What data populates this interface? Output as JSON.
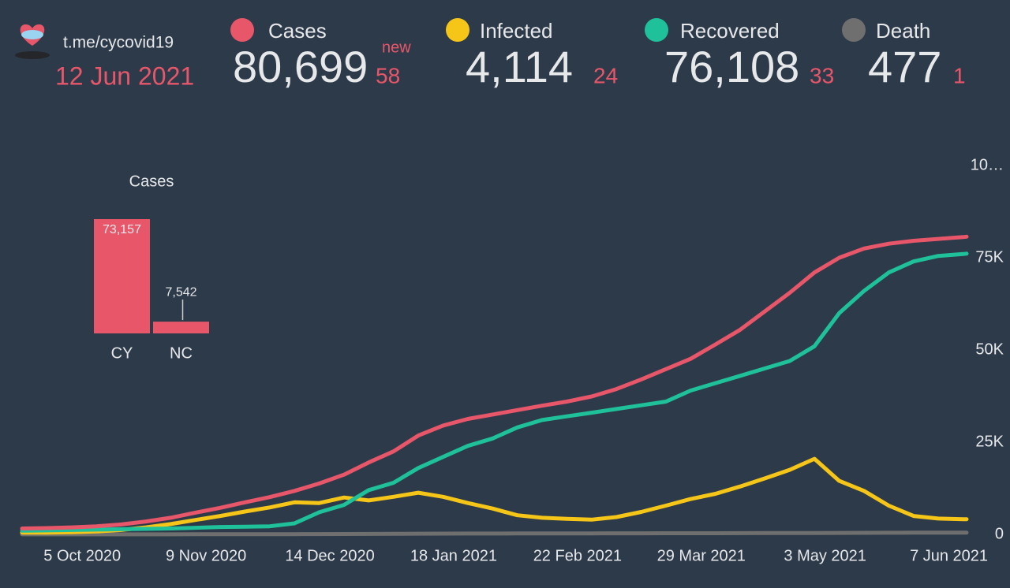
{
  "header": {
    "link": "t.me/cycovid19",
    "date": "12 Jun 2021",
    "new_label": "new",
    "stats": [
      {
        "name": "Cases",
        "color": "#e8566a",
        "value": "80,699",
        "new": "58"
      },
      {
        "name": "Infected",
        "color": "#f5c518",
        "value": "4,114",
        "new": "24"
      },
      {
        "name": "Recovered",
        "color": "#1fc19a",
        "value": "76,108",
        "new": "33"
      },
      {
        "name": "Death",
        "color": "#6f6f6f",
        "value": "477",
        "new": "1"
      }
    ]
  },
  "chart_data": [
    {
      "type": "bar",
      "title": "Cases",
      "categories": [
        "CY",
        "NC"
      ],
      "values": [
        73157,
        7542
      ],
      "value_labels": [
        "73,157",
        "7,542"
      ],
      "color": "#e8566a"
    },
    {
      "type": "line",
      "x": [
        "18 Sep 2020",
        "25 Sep 2020",
        "2 Oct 2020",
        "9 Oct 2020",
        "16 Oct 2020",
        "23 Oct 2020",
        "30 Oct 2020",
        "6 Nov 2020",
        "13 Nov 2020",
        "20 Nov 2020",
        "27 Nov 2020",
        "4 Dec 2020",
        "11 Dec 2020",
        "18 Dec 2020",
        "25 Dec 2020",
        "1 Jan 2021",
        "8 Jan 2021",
        "15 Jan 2021",
        "22 Jan 2021",
        "29 Jan 2021",
        "5 Feb 2021",
        "12 Feb 2021",
        "19 Feb 2021",
        "26 Feb 2021",
        "5 Mar 2021",
        "12 Mar 2021",
        "19 Mar 2021",
        "26 Mar 2021",
        "2 Apr 2021",
        "9 Apr 2021",
        "16 Apr 2021",
        "23 Apr 2021",
        "30 Apr 2021",
        "7 May 2021",
        "14 May 2021",
        "21 May 2021",
        "28 May 2021",
        "4 Jun 2021",
        "11 Jun 2021",
        "12 Jun 2021"
      ],
      "series": [
        {
          "name": "Death",
          "color": "#6f6f6f",
          "values": [
            20,
            22,
            23,
            24,
            26,
            28,
            30,
            33,
            37,
            42,
            48,
            60,
            80,
            110,
            130,
            160,
            190,
            210,
            230,
            240,
            250,
            265,
            275,
            285,
            290,
            300,
            310,
            320,
            330,
            345,
            360,
            375,
            390,
            410,
            430,
            450,
            465,
            472,
            476,
            477
          ]
        },
        {
          "name": "Infected",
          "color": "#f5c518",
          "values": [
            500,
            500,
            600,
            800,
            1200,
            1900,
            2800,
            3900,
            5000,
            6200,
            7300,
            8700,
            8500,
            10000,
            9200,
            10200,
            11300,
            10200,
            8500,
            7000,
            5200,
            4500,
            4200,
            4000,
            4700,
            6100,
            7800,
            9600,
            11000,
            13000,
            15200,
            17500,
            20500,
            14500,
            11800,
            7800,
            5000,
            4300,
            4100,
            4114
          ]
        },
        {
          "name": "Recovered",
          "color": "#1fc19a",
          "values": [
            1000,
            1100,
            1200,
            1300,
            1400,
            1500,
            1600,
            1800,
            2000,
            2100,
            2200,
            3000,
            6000,
            8000,
            12000,
            14000,
            18000,
            21000,
            24000,
            26000,
            29000,
            31000,
            32000,
            33000,
            34000,
            35000,
            36000,
            39000,
            41000,
            43000,
            45000,
            47000,
            51000,
            60000,
            66000,
            71000,
            74000,
            75500,
            76000,
            76108
          ]
        },
        {
          "name": "Cases",
          "color": "#e8566a",
          "values": [
            1600,
            1700,
            1900,
            2200,
            2700,
            3500,
            4500,
            5900,
            7200,
            8700,
            10100,
            11800,
            13800,
            16200,
            19500,
            22500,
            26800,
            29500,
            31300,
            32500,
            33700,
            34900,
            36000,
            37400,
            39400,
            42000,
            44800,
            47600,
            51500,
            55500,
            60500,
            65500,
            71000,
            75000,
            77500,
            78800,
            79600,
            80100,
            80600,
            80699
          ]
        }
      ],
      "ylim": [
        0,
        100000
      ],
      "yticks": [
        0,
        {
          "value": 25000,
          "label": "25K"
        },
        {
          "value": 50000,
          "label": "50K"
        },
        {
          "value": 75000,
          "label": "75K"
        },
        {
          "value": 100000,
          "label": "10…"
        }
      ],
      "xticks": [
        "5 Oct 2020",
        "9 Nov 2020",
        "14 Dec 2020",
        "18 Jan 2021",
        "22 Feb 2021",
        "29 Mar 2021",
        "3 May 2021",
        "7 Jun 2021"
      ]
    }
  ]
}
